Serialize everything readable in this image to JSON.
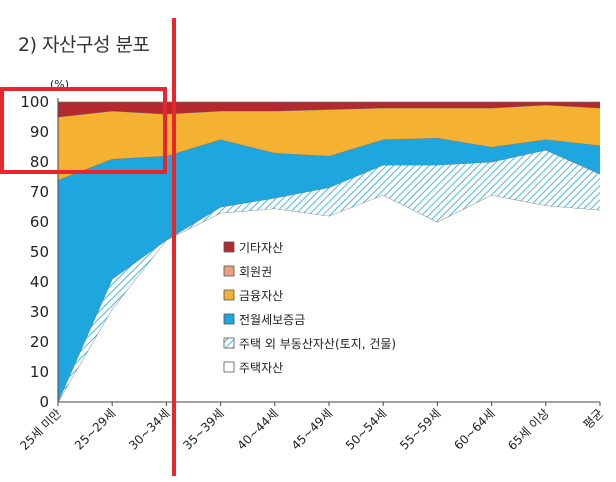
{
  "title": "2) 자산구성 분포",
  "chart_data": {
    "type": "area",
    "title": "2) 자산구성 분포",
    "ylabel_unit": "(%)",
    "ylim": [
      0,
      100
    ],
    "yticks": [
      0,
      10,
      20,
      30,
      40,
      50,
      60,
      70,
      80,
      90,
      100
    ],
    "categories": [
      "25세 미만",
      "25~29세",
      "30~34세",
      "35~39세",
      "40~44세",
      "45~49세",
      "50~54세",
      "55~59세",
      "60~64세",
      "65세 이상",
      "평균"
    ],
    "stacked": true,
    "series": [
      {
        "name": "주택자산",
        "color": "#ffffff",
        "values": [
          0,
          31,
          54,
          63,
          64.5,
          62,
          69,
          60,
          69,
          65.5,
          64
        ]
      },
      {
        "name": "주택 외 부동산자산(토지, 건물)",
        "color": "#29a9dc",
        "pattern": "hatch",
        "values": [
          0,
          10,
          0,
          2,
          3.5,
          9.5,
          10,
          19,
          11,
          18.5,
          12
        ]
      },
      {
        "name": "전월세보증금",
        "color": "#1ea6df",
        "values": [
          74,
          40,
          28,
          22.5,
          15,
          10.5,
          8.5,
          9,
          5,
          3.5,
          9.5
        ]
      },
      {
        "name": "금융자산",
        "color": "#f5b131",
        "values": [
          21,
          16,
          14,
          9.5,
          14,
          15.5,
          10.5,
          10,
          13,
          11.5,
          12.5
        ]
      },
      {
        "name": "회원권",
        "color": "#e8a07d",
        "values": [
          0,
          0,
          0,
          0,
          0,
          0,
          0,
          0,
          0,
          0,
          0
        ]
      },
      {
        "name": "기타자산",
        "color": "#b22a30",
        "values": [
          5,
          3,
          4,
          3,
          3,
          2.5,
          2,
          2,
          2,
          1,
          2
        ]
      }
    ],
    "legend": {
      "position": "center",
      "order": [
        "기타자산",
        "회원권",
        "금융자산",
        "전월세보증금",
        "주택 외 부동산자산(토지, 건물)",
        "주택자산"
      ]
    },
    "grid": false
  }
}
